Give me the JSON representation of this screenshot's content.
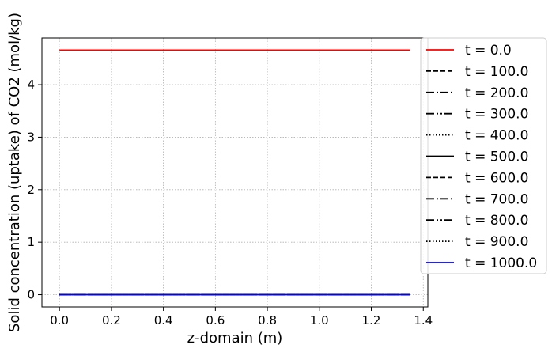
{
  "chart_data": {
    "type": "line",
    "xlabel": "z-domain (m)",
    "ylabel": "Solid concentration (uptake) of CO2 (mol/kg)",
    "xlim": [
      -0.0675,
      1.4175
    ],
    "ylim": [
      -0.233,
      4.89
    ],
    "x_ticks": [
      0.0,
      0.2,
      0.4,
      0.6,
      0.8,
      1.0,
      1.2,
      1.4
    ],
    "x_tick_labels": [
      "0.0",
      "0.2",
      "0.4",
      "0.6",
      "0.8",
      "1.0",
      "1.2",
      "1.4"
    ],
    "y_ticks": [
      0,
      1,
      2,
      3,
      4
    ],
    "y_tick_labels": [
      "0",
      "1",
      "2",
      "3",
      "4"
    ],
    "grid": true,
    "legend_position": "right-outside",
    "series": [
      {
        "name": "t = 0.0",
        "x": [
          0.0,
          1.35
        ],
        "y": [
          4.66,
          4.66
        ],
        "color": "#ff0000",
        "style": "solid"
      },
      {
        "name": "t = 100.0",
        "x": [
          0.0,
          1.35
        ],
        "y": [
          0.0,
          0.0
        ],
        "color": "#000000",
        "style": "dashed"
      },
      {
        "name": "t = 200.0",
        "x": [
          0.0,
          1.35
        ],
        "y": [
          0.0,
          0.0
        ],
        "color": "#000000",
        "style": "dashdot"
      },
      {
        "name": "t = 300.0",
        "x": [
          0.0,
          1.35
        ],
        "y": [
          0.0,
          0.0
        ],
        "color": "#000000",
        "style": "dashdotdot"
      },
      {
        "name": "t = 400.0",
        "x": [
          0.0,
          1.35
        ],
        "y": [
          0.0,
          0.0
        ],
        "color": "#000000",
        "style": "dotted"
      },
      {
        "name": "t = 500.0",
        "x": [
          0.0,
          1.35
        ],
        "y": [
          0.0,
          0.0
        ],
        "color": "#000000",
        "style": "solid"
      },
      {
        "name": "t = 600.0",
        "x": [
          0.0,
          1.35
        ],
        "y": [
          0.0,
          0.0
        ],
        "color": "#000000",
        "style": "dashed"
      },
      {
        "name": "t = 700.0",
        "x": [
          0.0,
          1.35
        ],
        "y": [
          0.0,
          0.0
        ],
        "color": "#000000",
        "style": "dashdot"
      },
      {
        "name": "t = 800.0",
        "x": [
          0.0,
          1.35
        ],
        "y": [
          0.0,
          0.0
        ],
        "color": "#000000",
        "style": "dashdotdot"
      },
      {
        "name": "t = 900.0",
        "x": [
          0.0,
          1.35
        ],
        "y": [
          0.0,
          0.0
        ],
        "color": "#000000",
        "style": "dotted"
      },
      {
        "name": "t = 1000.0",
        "x": [
          0.0,
          1.35
        ],
        "y": [
          0.0,
          0.0
        ],
        "color": "#0000ff",
        "style": "solid"
      }
    ]
  }
}
